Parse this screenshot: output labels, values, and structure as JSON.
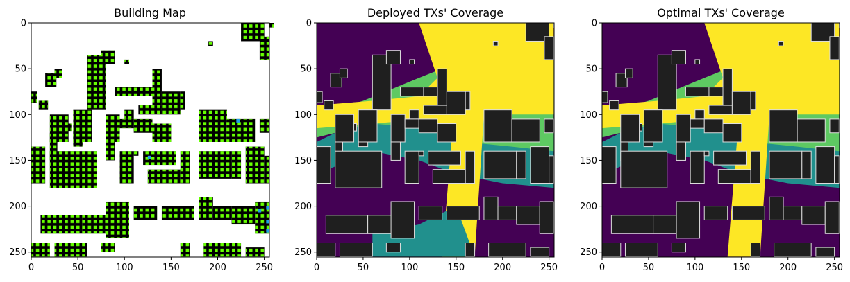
{
  "chart_data": [
    {
      "type": "heatmap",
      "title": "Building Map",
      "xlim": [
        0,
        255
      ],
      "ylim": [
        255,
        0
      ],
      "x_ticks": [
        0,
        50,
        100,
        150,
        200,
        250
      ],
      "y_ticks": [
        0,
        50,
        100,
        150,
        200,
        250
      ],
      "colors": {
        "background": "#ffffff",
        "building": "#000000",
        "grid_points": "#66ff00",
        "deployed_tx": "#1ea0e6"
      }
    },
    {
      "type": "heatmap",
      "title": "Deployed TXs' Coverage",
      "xlim": [
        0,
        255
      ],
      "ylim": [
        255,
        0
      ],
      "x_ticks": [
        0,
        50,
        100,
        150,
        200,
        250
      ],
      "y_ticks": [
        0,
        50,
        100,
        150,
        200,
        250
      ],
      "colorscale": [
        "#440154",
        "#21908d",
        "#5ec962",
        "#fde725"
      ],
      "colors": {
        "building": "#1f1f1f",
        "building_edge": "#dddddd"
      }
    },
    {
      "type": "heatmap",
      "title": "Optimal TXs' Coverage",
      "xlim": [
        0,
        255
      ],
      "ylim": [
        255,
        0
      ],
      "x_ticks": [
        0,
        50,
        100,
        150,
        200,
        250
      ],
      "y_ticks": [
        0,
        50,
        100,
        150,
        200,
        250
      ],
      "colorscale": [
        "#440154",
        "#21908d",
        "#5ec962",
        "#fde725"
      ],
      "colors": {
        "building": "#1f1f1f",
        "building_edge": "#dddddd"
      }
    }
  ]
}
